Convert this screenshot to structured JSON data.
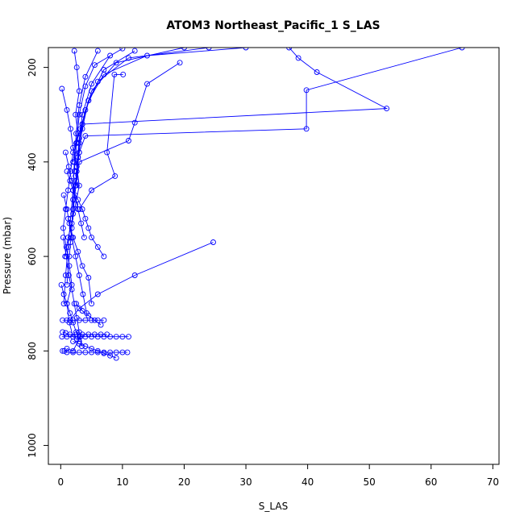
{
  "chart_data": {
    "type": "line",
    "title": "ATOM3 Northeast_Pacific_1 S_LAS",
    "xlabel": "S_LAS",
    "ylabel": "Pressure (mbar)",
    "xlim": [
      -2,
      71
    ],
    "ylim": [
      1040,
      158
    ],
    "y_reversed": true,
    "grid": false,
    "legend": "none",
    "x_ticks": [
      0,
      10,
      20,
      30,
      40,
      50,
      60,
      70
    ],
    "y_ticks": [
      200,
      400,
      600,
      800,
      1000
    ],
    "colors": {
      "series": "#0000ff",
      "axis": "#000000"
    },
    "marker": "open-circle",
    "series": [
      {
        "x": [
          2.2,
          2.6,
          3.0,
          2.4,
          2.8,
          2.0,
          1.6,
          1.2,
          0.8,
          0.4,
          0.9,
          1.4,
          1.8,
          1.0,
          1.4,
          2.0,
          2.6,
          3.2,
          2.0,
          1.0
        ],
        "y": [
          165,
          200,
          250,
          300,
          340,
          380,
          420,
          460,
          500,
          540,
          580,
          620,
          660,
          700,
          740,
          770,
          775,
          770,
          800,
          795
        ]
      },
      {
        "x": [
          6.0,
          4.0,
          3.0,
          2.5,
          2.2,
          2.0,
          1.6,
          1.2,
          0.8,
          0.5
        ],
        "y": [
          165,
          220,
          280,
          340,
          400,
          460,
          520,
          580,
          640,
          700
        ]
      },
      {
        "x": [
          8.0,
          5.0,
          3.5,
          3.0,
          2.6,
          2.0,
          1.8,
          1.4,
          1.0
        ],
        "y": [
          175,
          235,
          300,
          360,
          420,
          480,
          540,
          600,
          660
        ]
      },
      {
        "x": [
          12.0,
          7.0,
          4.5,
          3.2,
          2.8,
          2.4,
          2.0,
          1.6
        ],
        "y": [
          165,
          205,
          270,
          330,
          390,
          450,
          510,
          570
        ]
      },
      {
        "x": [
          20.0,
          9.0,
          5.0,
          3.5,
          3.0,
          2.5,
          2.0
        ],
        "y": [
          158,
          190,
          250,
          320,
          380,
          440,
          500
        ]
      },
      {
        "x": [
          24.0,
          11.0,
          6.0,
          4.0,
          3.0,
          2.6
        ],
        "y": [
          158,
          180,
          230,
          290,
          350,
          410
        ]
      },
      {
        "x": [
          30.0,
          14.0,
          7.0,
          4.5,
          3.5,
          2.8
        ],
        "y": [
          158,
          175,
          215,
          270,
          330,
          390
        ]
      },
      {
        "x": [
          10.0,
          5.5,
          4.0,
          3.0,
          2.6,
          2.2
        ],
        "y": [
          160,
          195,
          240,
          300,
          360,
          420
        ]
      },
      {
        "x": [
          37.0,
          38.5,
          41.5,
          52.8,
          3.5,
          2.5,
          2.0
        ],
        "y": [
          158,
          180,
          210,
          287,
          320,
          360,
          400
        ]
      },
      {
        "x": [
          65.0,
          39.8,
          39.8,
          4.0,
          3.0,
          2.4
        ],
        "y": [
          158,
          248,
          330,
          345,
          380,
          430
        ]
      },
      {
        "x": [
          19.3,
          14.0,
          12.0,
          11.0,
          3.0,
          2.5
        ],
        "y": [
          190,
          235,
          317,
          355,
          400,
          450
        ]
      },
      {
        "x": [
          10.1,
          8.7,
          7.5,
          8.8,
          5.0,
          3.0
        ],
        "y": [
          215,
          215,
          380,
          430,
          460,
          500
        ]
      },
      {
        "x": [
          0.2,
          1.0,
          1.6,
          2.0,
          2.6,
          3.0,
          2.4,
          1.8,
          1.2,
          0.7
        ],
        "y": [
          245,
          290,
          330,
          370,
          410,
          450,
          490,
          530,
          560,
          600
        ]
      },
      {
        "x": [
          1.0,
          1.5,
          2.0,
          2.8,
          3.5,
          4.0,
          4.5,
          5.0,
          6.0,
          7.0
        ],
        "y": [
          420,
          440,
          460,
          480,
          500,
          520,
          540,
          560,
          580,
          600
        ]
      },
      {
        "x": [
          0.5,
          1.0,
          1.4,
          2.0,
          2.8,
          3.5,
          4.5,
          5.0
        ],
        "y": [
          470,
          500,
          530,
          560,
          590,
          620,
          645,
          700
        ]
      },
      {
        "x": [
          24.7,
          12.0,
          6.0,
          3.0,
          1.5
        ],
        "y": [
          570,
          640,
          680,
          710,
          735
        ]
      },
      {
        "x": [
          0.3,
          1.0,
          2.0,
          3.0,
          4.0,
          5.0,
          6.0,
          7.0
        ],
        "y": [
          735,
          735,
          735,
          735,
          735,
          735,
          735,
          735
        ]
      },
      {
        "x": [
          0.2,
          1.0,
          2.0,
          3.0,
          4.0,
          5.0,
          6.0,
          7.0,
          8.0,
          9.0,
          10.0,
          11.0
        ],
        "y": [
          770,
          770,
          770,
          770,
          770,
          770,
          770,
          770,
          770,
          770,
          770,
          770
        ]
      },
      {
        "x": [
          0.3,
          0.8,
          1.5,
          2.5,
          3.5,
          4.5,
          5.5,
          6.5,
          7.5
        ],
        "y": [
          760,
          762,
          765,
          765,
          765,
          765,
          765,
          765,
          765
        ]
      },
      {
        "x": [
          0.3,
          0.6,
          1.0,
          2.0,
          3.0,
          4.0,
          5.0,
          6.0,
          7.0,
          8.0,
          9.0,
          10.0,
          10.8
        ],
        "y": [
          800,
          800,
          803,
          803,
          803,
          803,
          803,
          803,
          803,
          803,
          803,
          803,
          803
        ]
      },
      {
        "x": [
          2.0,
          3.0,
          4.0,
          5.0,
          6.0,
          7.0,
          8.0,
          9.0
        ],
        "y": [
          780,
          785,
          790,
          795,
          800,
          805,
          810,
          815
        ]
      },
      {
        "x": [
          0.1,
          0.5,
          1.0,
          1.5,
          2.0,
          2.5,
          3.0
        ],
        "y": [
          660,
          680,
          700,
          720,
          740,
          760,
          780
        ]
      },
      {
        "x": [
          0.4,
          0.9,
          1.3,
          1.8,
          2.2,
          2.6,
          3.0,
          3.4
        ],
        "y": [
          560,
          600,
          640,
          670,
          700,
          730,
          760,
          790
        ]
      },
      {
        "x": [
          1.2,
          1.8,
          2.4,
          3.0,
          3.6,
          4.2
        ],
        "y": [
          520,
          560,
          600,
          640,
          680,
          720
        ]
      },
      {
        "x": [
          2.5,
          3.5,
          4.5,
          5.5,
          6.5
        ],
        "y": [
          700,
          715,
          725,
          735,
          745
        ]
      },
      {
        "x": [
          0.8,
          1.3,
          1.8,
          2.3,
          2.8,
          3.3,
          3.8
        ],
        "y": [
          380,
          410,
          440,
          470,
          500,
          530,
          560
        ]
      }
    ]
  }
}
